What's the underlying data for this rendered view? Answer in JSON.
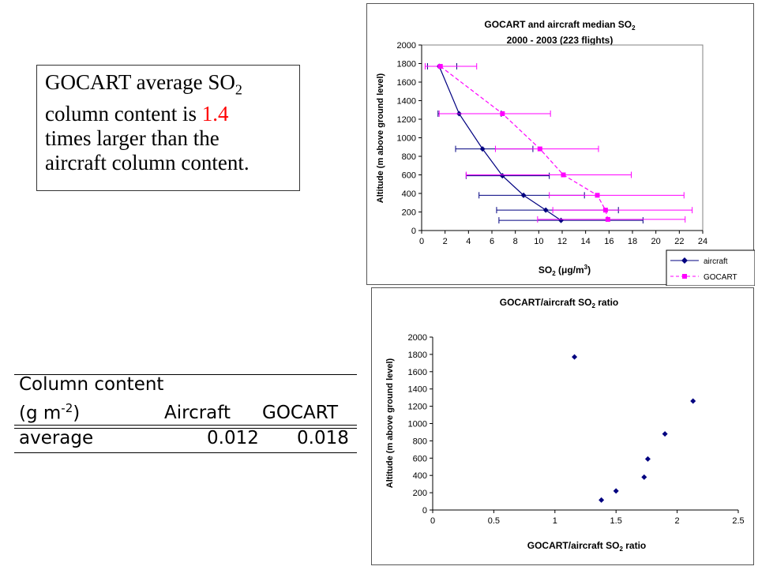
{
  "textbox": {
    "line1_pre": "GOCART average SO",
    "line1_sub": "2",
    "line2_pre": "column content is ",
    "line2_num": "1.4",
    "line3": "times larger than the",
    "line4": "aircraft column content."
  },
  "table": {
    "header1": "Column content",
    "header2_pre": "(g m",
    "header2_sup": "-2",
    "header2_post": ")",
    "col_aircraft": "Aircraft",
    "col_gocart": "GOCART",
    "row_label": "average",
    "row_aircraft": "0.012",
    "row_gocart": "0.018"
  },
  "chart_data": [
    {
      "type": "line",
      "title_line1_pre": "GOCART and aircraft median SO",
      "title_line1_sub": "2",
      "title_line2": "2000 - 2003 (223 flights)",
      "xlabel_pre": "SO",
      "xlabel_sub": "2",
      "xlabel_post": " (μg/m",
      "xlabel_sup": "3",
      "xlabel_end": ")",
      "ylabel": "Altitude (m above ground level)",
      "xlim": [
        0,
        24
      ],
      "ylim": [
        0,
        2000
      ],
      "xticks": [
        0,
        2,
        4,
        6,
        8,
        10,
        12,
        14,
        16,
        18,
        20,
        22,
        24
      ],
      "yticks": [
        0,
        200,
        400,
        600,
        800,
        1000,
        1200,
        1400,
        1600,
        1800,
        2000
      ],
      "legend_position": "bottom-right outside",
      "series": [
        {
          "name": "aircraft",
          "color": "#000080",
          "marker": "diamond",
          "dashed": false,
          "points": [
            {
              "x": 1.5,
              "y": 1770,
              "xmin": 0.5,
              "xmax": 3.0
            },
            {
              "x": 3.2,
              "y": 1260,
              "xmin": 1.4,
              "xmax": 6.8
            },
            {
              "x": 5.2,
              "y": 880,
              "xmin": 2.9,
              "xmax": 9.5
            },
            {
              "x": 6.9,
              "y": 590,
              "xmin": 3.8,
              "xmax": 10.9
            },
            {
              "x": 8.7,
              "y": 380,
              "xmin": 4.9,
              "xmax": 13.9
            },
            {
              "x": 10.6,
              "y": 220,
              "xmin": 6.4,
              "xmax": 16.8
            },
            {
              "x": 11.9,
              "y": 110,
              "xmin": 6.6,
              "xmax": 18.9
            }
          ]
        },
        {
          "name": "GOCART",
          "color": "#ff00ff",
          "marker": "square",
          "dashed": true,
          "points": [
            {
              "x": 1.6,
              "y": 1770,
              "xmin": 0.3,
              "xmax": 4.7
            },
            {
              "x": 6.9,
              "y": 1260,
              "xmin": 1.5,
              "xmax": 11.0
            },
            {
              "x": 10.1,
              "y": 880,
              "xmin": 6.3,
              "xmax": 15.1
            },
            {
              "x": 12.1,
              "y": 600,
              "xmin": 3.8,
              "xmax": 17.9
            },
            {
              "x": 15.0,
              "y": 380,
              "xmin": 10.9,
              "xmax": 22.4
            },
            {
              "x": 15.7,
              "y": 220,
              "xmin": 11.2,
              "xmax": 23.1
            },
            {
              "x": 15.9,
              "y": 120,
              "xmin": 9.9,
              "xmax": 22.5
            }
          ]
        }
      ]
    },
    {
      "type": "scatter",
      "title_pre": "GOCART/aircraft SO",
      "title_sub": "2",
      "title_post": " ratio",
      "xlabel_pre": "GOCART/aircraft SO",
      "xlabel_sub": "2",
      "xlabel_post": " ratio",
      "ylabel": "Altitude (m above ground level)",
      "xlim": [
        0,
        2.5
      ],
      "ylim": [
        0,
        2000
      ],
      "xticks": [
        0,
        0.5,
        1,
        1.5,
        2,
        2.5
      ],
      "yticks": [
        0,
        200,
        400,
        600,
        800,
        1000,
        1200,
        1400,
        1600,
        1800,
        2000
      ],
      "series": [
        {
          "color": "#000080",
          "marker": "diamond",
          "points": [
            {
              "x": 1.16,
              "y": 1770
            },
            {
              "x": 2.13,
              "y": 1260
            },
            {
              "x": 1.9,
              "y": 880
            },
            {
              "x": 1.76,
              "y": 590
            },
            {
              "x": 1.73,
              "y": 380
            },
            {
              "x": 1.5,
              "y": 220
            },
            {
              "x": 1.38,
              "y": 115
            }
          ]
        }
      ]
    }
  ]
}
